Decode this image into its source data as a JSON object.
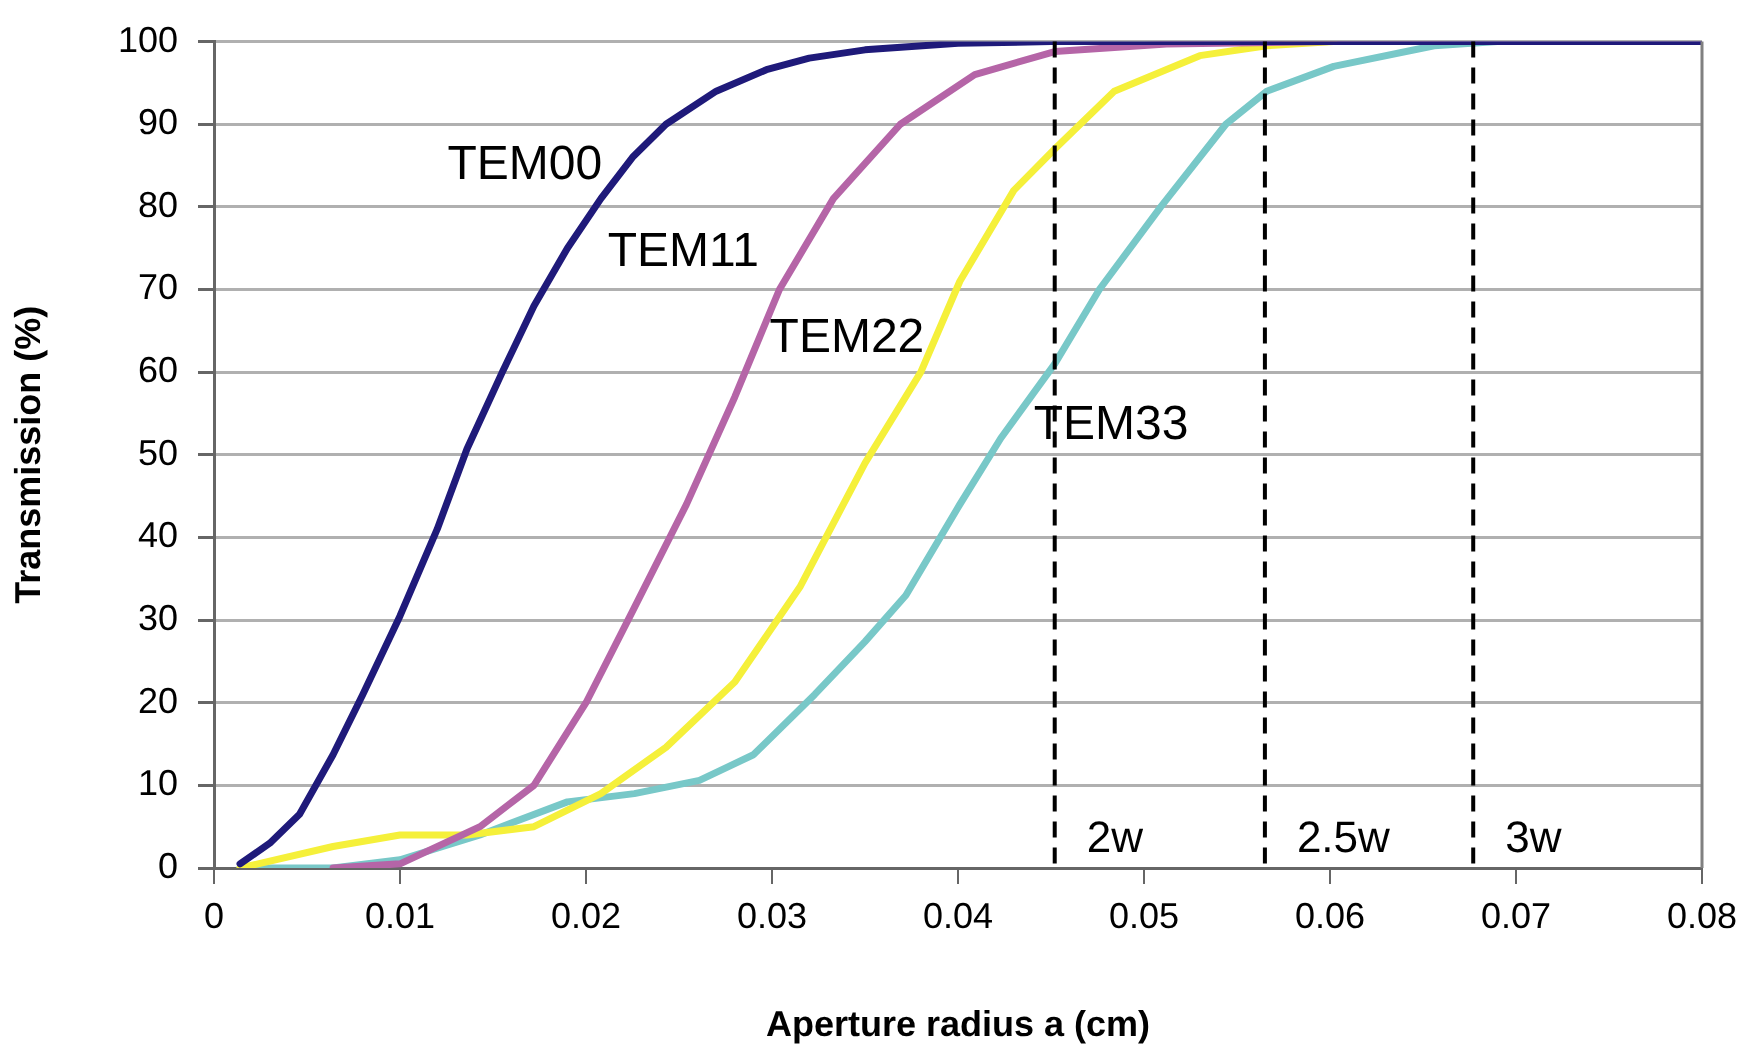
{
  "chart_data": {
    "type": "line",
    "xlabel": "Aperture radius a (cm)",
    "ylabel": "Transmission (%)",
    "xlim": [
      0,
      0.08
    ],
    "xticks": [
      0,
      0.01,
      0.02,
      0.03,
      0.04,
      0.05,
      0.06,
      0.07,
      0.08
    ],
    "ylim": [
      0,
      100
    ],
    "yticks": [
      0,
      10,
      20,
      30,
      40,
      50,
      60,
      70,
      80,
      90,
      100
    ],
    "grid": "y",
    "legend": false,
    "marker": "none",
    "line_style": "solid",
    "series": [
      {
        "name": "TEM00",
        "color": "#1f1a7a",
        "x": [
          0.0014,
          0.003,
          0.0046,
          0.0064,
          0.008,
          0.01,
          0.012,
          0.0136,
          0.0155,
          0.0172,
          0.019,
          0.0208,
          0.0225,
          0.0243,
          0.027,
          0.0297,
          0.032,
          0.035,
          0.04,
          0.045,
          0.08
        ],
        "values": [
          0.5,
          3,
          6.5,
          13.7,
          21,
          30.5,
          41,
          50.7,
          60,
          68,
          75,
          81,
          86,
          90,
          94,
          96.6,
          98,
          99,
          99.8,
          100,
          100
        ]
      },
      {
        "name": "TEM11",
        "color": "#b565a7",
        "x": [
          0.0064,
          0.01,
          0.0143,
          0.0172,
          0.02,
          0.0226,
          0.0254,
          0.028,
          0.0304,
          0.0333,
          0.0369,
          0.0409,
          0.0452,
          0.0512,
          0.06,
          0.08
        ],
        "values": [
          0,
          0.5,
          5,
          10,
          20,
          31.5,
          44,
          57,
          70,
          81,
          90,
          96,
          98.8,
          99.7,
          100,
          100
        ]
      },
      {
        "name": "TEM22",
        "color": "#f5f03a",
        "x": [
          0.0014,
          0.0064,
          0.01,
          0.0136,
          0.0172,
          0.0208,
          0.0243,
          0.028,
          0.0315,
          0.035,
          0.038,
          0.0401,
          0.043,
          0.0452,
          0.0484,
          0.053,
          0.0566,
          0.0602
        ],
        "values": [
          0,
          2.6,
          4,
          4,
          5,
          9,
          14.6,
          22.5,
          34,
          49,
          60,
          71,
          82,
          87,
          94,
          98.3,
          99.5,
          100
        ]
      },
      {
        "name": "TEM33",
        "color": "#78c8c8",
        "x": [
          0.0014,
          0.0064,
          0.01,
          0.0143,
          0.019,
          0.0226,
          0.0261,
          0.029,
          0.0323,
          0.035,
          0.0372,
          0.0401,
          0.0423,
          0.0452,
          0.0476,
          0.0509,
          0.0544,
          0.0566,
          0.0602,
          0.0656,
          0.069,
          0.08
        ],
        "values": [
          0,
          0,
          1,
          4,
          8,
          9,
          10.6,
          13.7,
          21,
          27.4,
          33,
          44,
          52,
          61,
          70,
          80,
          90,
          94,
          97,
          99.5,
          100,
          100
        ]
      }
    ],
    "ref_lines": [
      {
        "axis": "x",
        "value": 0.0452,
        "label": "2w"
      },
      {
        "axis": "x",
        "value": 0.0565,
        "label": "2.5w"
      },
      {
        "axis": "x",
        "value": 0.0677,
        "label": "3w"
      }
    ]
  }
}
